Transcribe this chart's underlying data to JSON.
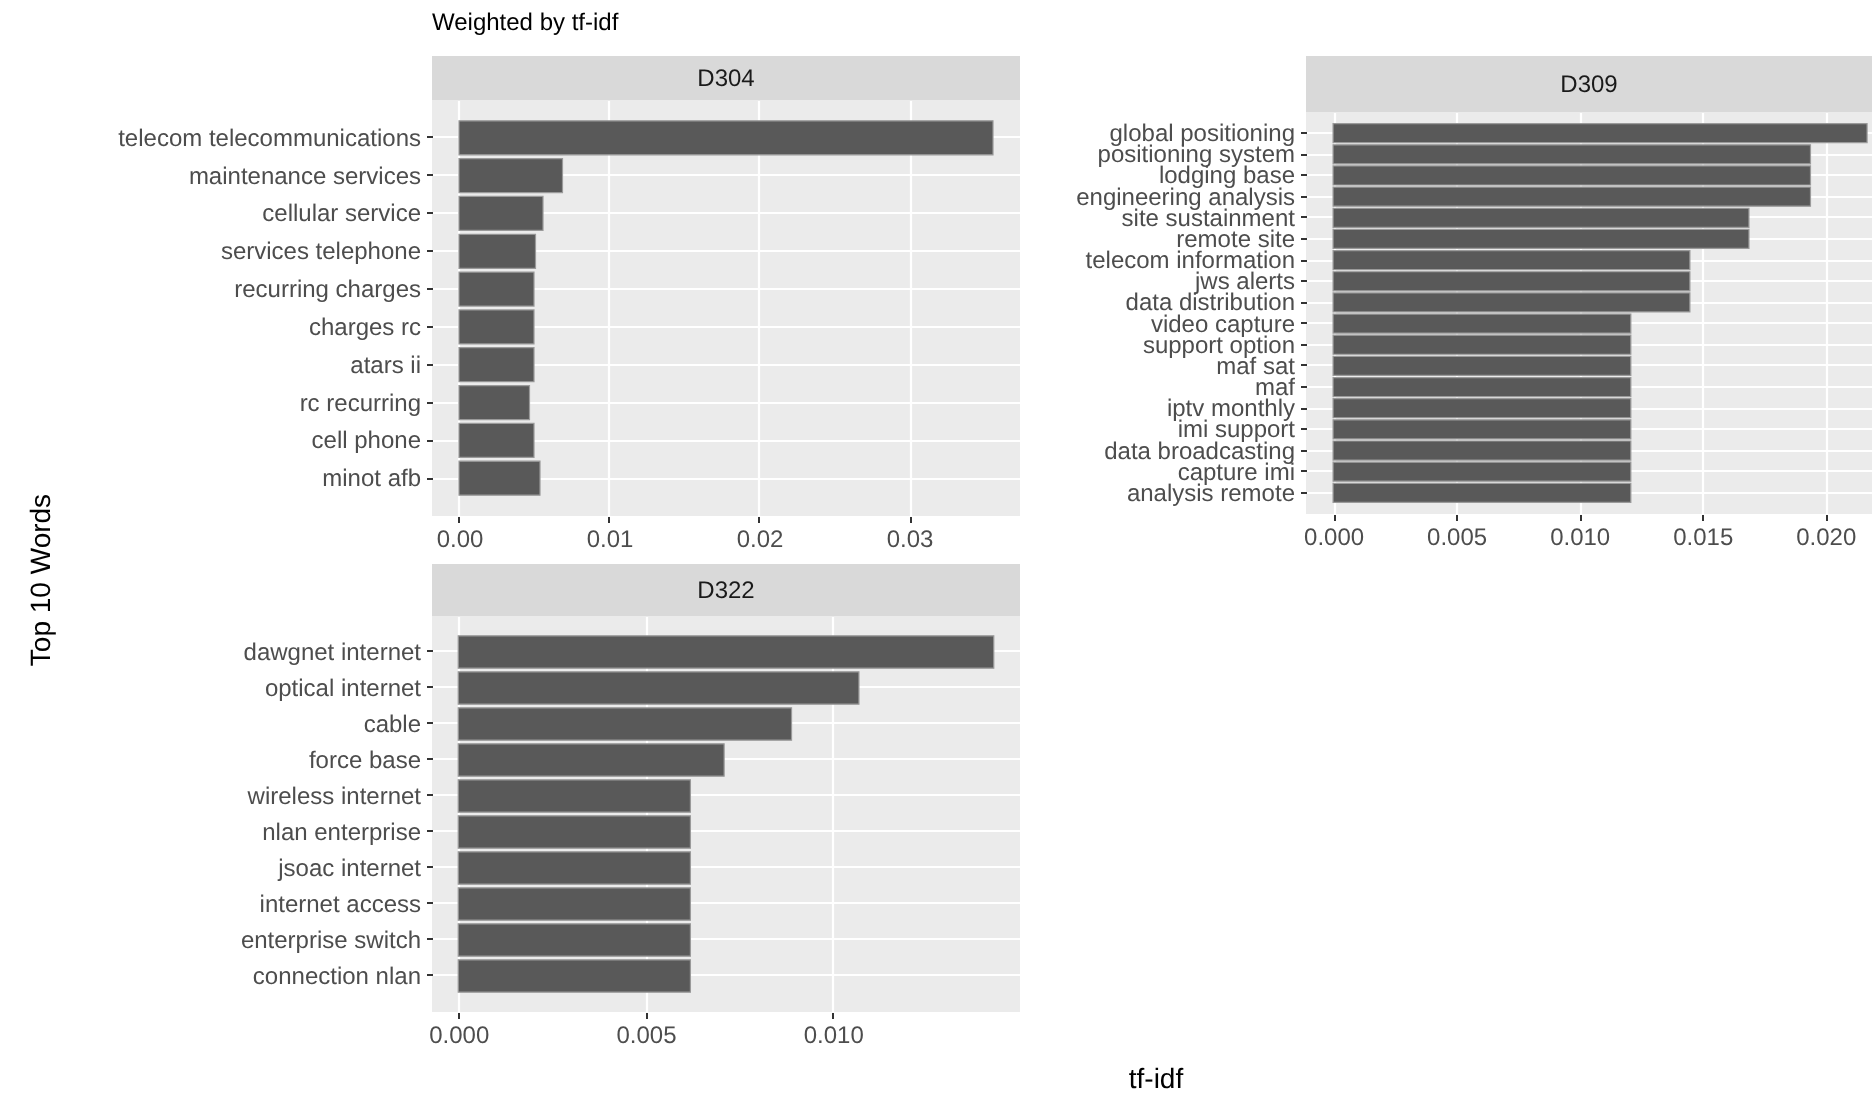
{
  "chart_data": [
    {
      "type": "bar",
      "orientation": "horizontal",
      "title": "D304",
      "annotations": [
        "Weighted by tf-idf"
      ],
      "ylabel": "Top 10 Words",
      "categories": [
        "telecom telecommunications",
        "maintenance services",
        "cellular service",
        "services telephone",
        "recurring charges",
        "charges rc",
        "atars ii",
        "rc recurring",
        "cell phone",
        "minot afb"
      ],
      "values": [
        0.0356,
        0.0069,
        0.0056,
        0.0051,
        0.005,
        0.005,
        0.005,
        0.0047,
        0.005,
        0.0054
      ],
      "color": "#595959",
      "xlim": [
        -0.0018,
        0.0374
      ],
      "xticks": [
        {
          "value": 0,
          "label": "0.00"
        },
        0.01,
        0.02,
        0.03
      ],
      "grid": true
    },
    {
      "type": "bar",
      "orientation": "horizontal",
      "title": "D309",
      "categories": [
        "global positioning",
        "positioning system",
        "lodging base",
        "engineering analysis",
        "site sustainment",
        "remote site",
        "telecom information",
        "jws alerts",
        "data distribution",
        "video capture",
        "support option",
        "maf sat",
        "maf",
        "iptv monthly",
        "imi support",
        "data broadcasting",
        "capture imi",
        "analysis remote"
      ],
      "values": [
        0.0217,
        0.0194,
        0.0194,
        0.0194,
        0.0169,
        0.0169,
        0.0145,
        0.0145,
        0.0145,
        0.0121,
        0.0121,
        0.0121,
        0.0121,
        0.0121,
        0.0121,
        0.0121,
        0.0121,
        0.0121
      ],
      "color": "#595959",
      "xlim": [
        -0.0011,
        0.0219
      ],
      "xticks": [
        {
          "value": 0,
          "label": "0.000"
        },
        0.005,
        {
          "value": 0.01,
          "label": "0.010"
        },
        0.015,
        {
          "value": 0.02,
          "label": "0.020"
        }
      ],
      "grid": true
    },
    {
      "type": "bar",
      "orientation": "horizontal",
      "title": "D322",
      "xlabel": "tf-idf",
      "categories": [
        "dawgnet internet",
        "optical internet",
        "cable",
        "force base",
        "wireless internet",
        "nlan enterprise",
        "jsoac internet",
        "internet access",
        "enterprise switch",
        "connection nlan"
      ],
      "values": [
        0.0143,
        0.0107,
        0.0089,
        0.0071,
        0.0062,
        0.0062,
        0.0062,
        0.0062,
        0.0062,
        0.0062
      ],
      "color": "#595959",
      "xlim": [
        -0.0007,
        0.015
      ],
      "xticks": [
        {
          "value": 0,
          "label": "0.000"
        },
        0.005,
        {
          "value": 0.01,
          "label": "0.010"
        }
      ],
      "grid": true
    }
  ]
}
